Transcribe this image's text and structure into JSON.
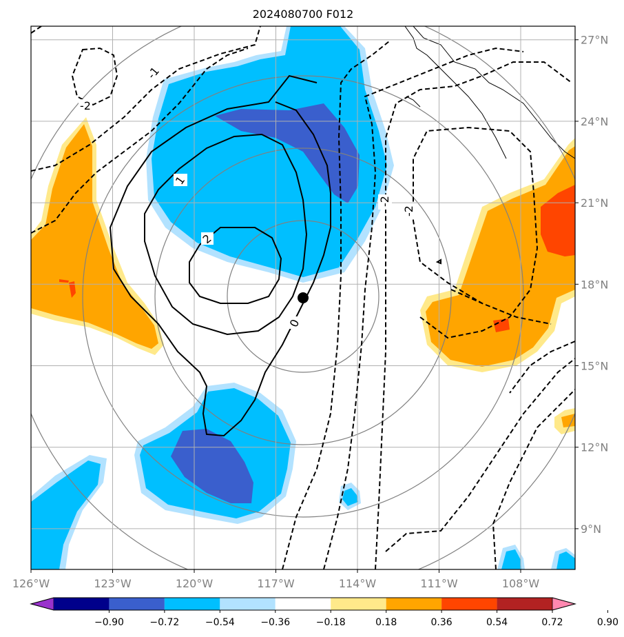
{
  "chart_data": {
    "type": "contour map",
    "title": "2024080700 F012",
    "x_ticks": [
      "126°W",
      "123°W",
      "120°W",
      "117°W",
      "114°W",
      "111°W",
      "108°W"
    ],
    "y_ticks": [
      "27°N",
      "24°N",
      "21°N",
      "18°N",
      "15°N",
      "12°N",
      "9°N"
    ],
    "lon_values": [
      -126,
      -123,
      -120,
      -117,
      -114,
      -111,
      -108
    ],
    "lat_values": [
      27,
      24,
      21,
      18,
      15,
      12,
      9
    ],
    "xlim": [
      -126,
      -106
    ],
    "ylim": [
      7.5,
      27.5
    ],
    "grid": true,
    "center_marker": {
      "lon": -116.0,
      "lat": 17.4
    },
    "contour_labels": [
      "-2",
      "-1",
      "1",
      "2",
      "0",
      "-2",
      "-2"
    ],
    "colorbar": {
      "ticks": [
        "−0.90",
        "−0.72",
        "−0.54",
        "−0.36",
        "−0.18",
        "0.18",
        "0.36",
        "0.54",
        "0.72",
        "0.90"
      ],
      "colors": [
        "#9932cc",
        "#00008b",
        "#3a5fcd",
        "#00bfff",
        "#b2e2ff",
        "#ffffff",
        "#ffe98a",
        "#ffa500",
        "#ff4500",
        "#b22222",
        "#ff88b0"
      ],
      "extend": "both"
    }
  }
}
